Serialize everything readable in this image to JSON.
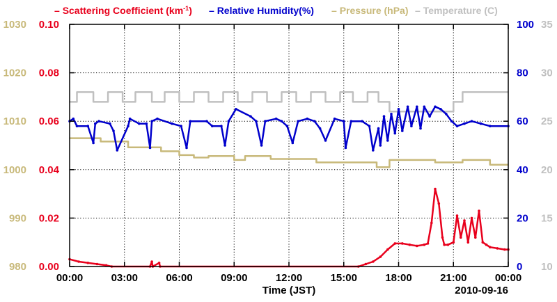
{
  "chart_data": {
    "type": "line",
    "legend": [
      {
        "name": "Scattering Coefficient",
        "unit_prefix": "(km",
        "unit_sup": "-1",
        "unit_suffix": ")",
        "color": "#e8001c",
        "dash": "–"
      },
      {
        "name": "Relative Humidity(%)",
        "color": "#0000cc",
        "dash": "–"
      },
      {
        "name": "Pressure (hPa)",
        "color": "#c8b97a",
        "dash": "–"
      },
      {
        "name": "Temperature (C)",
        "color": "#c0c0c0",
        "dash": "–"
      }
    ],
    "xlabel": "Time (JST)",
    "date_label": "2010-09-16",
    "x_ticks": [
      "00:00",
      "03:00",
      "06:00",
      "09:00",
      "12:00",
      "15:00",
      "18:00",
      "21:00",
      "00:00"
    ],
    "xlim_hours": [
      0,
      24
    ],
    "axes": {
      "scattering": {
        "ticks": [
          "0.00",
          "0.02",
          "0.04",
          "0.06",
          "0.08",
          "0.10"
        ],
        "range": [
          0,
          0.1
        ],
        "color": "#e8001c"
      },
      "humidity": {
        "ticks": [
          "0",
          "20",
          "40",
          "60",
          "80",
          "100"
        ],
        "range": [
          0,
          100
        ],
        "color": "#0000cc"
      },
      "pressure": {
        "ticks": [
          "980",
          "990",
          "1000",
          "1010",
          "1020",
          "1030"
        ],
        "range": [
          980,
          1030
        ],
        "color": "#c8b97a"
      },
      "temperature": {
        "ticks": [
          "10",
          "15",
          "20",
          "25",
          "30",
          "35"
        ],
        "range": [
          10,
          35
        ],
        "color": "#c0c0c0"
      }
    },
    "series": [
      {
        "name": "Temperature",
        "axis": "temperature",
        "color": "#c0c0c0",
        "x": [
          0,
          0.4,
          0.4,
          1.3,
          1.3,
          2.1,
          2.1,
          2.9,
          2.9,
          3.6,
          3.6,
          4.5,
          4.5,
          5.2,
          5.2,
          6.0,
          6.0,
          6.8,
          6.8,
          7.6,
          7.6,
          8.4,
          8.4,
          9.2,
          9.2,
          10.0,
          10.0,
          10.8,
          10.8,
          11.6,
          11.6,
          12.4,
          12.4,
          13.2,
          13.2,
          14.0,
          14.0,
          14.8,
          14.8,
          15.5,
          15.5,
          16.3,
          16.3,
          16.9,
          16.9,
          17.5,
          17.5,
          21.0,
          21.0,
          21.5,
          21.5,
          24
        ],
        "y": [
          27,
          27,
          28,
          28,
          27,
          27,
          28,
          28,
          27,
          27,
          28,
          28,
          27,
          27,
          28,
          28,
          27,
          27,
          28,
          28,
          27,
          27,
          28,
          28,
          27,
          27,
          28,
          28,
          27,
          27,
          28,
          28,
          27,
          27,
          28,
          28,
          27,
          27,
          28,
          28,
          27,
          27,
          28,
          28,
          27,
          27,
          26,
          26,
          27,
          27,
          28,
          28
        ]
      },
      {
        "name": "Pressure",
        "axis": "pressure",
        "color": "#c8b97a",
        "x": [
          0,
          1.7,
          1.7,
          3.2,
          3.2,
          5.0,
          5.0,
          6.0,
          6.0,
          6.8,
          6.8,
          7.6,
          7.6,
          9.0,
          9.0,
          9.6,
          9.6,
          11.0,
          11.0,
          13.5,
          13.5,
          16.8,
          16.8,
          17.5,
          17.5,
          20.0,
          20.0,
          21.5,
          21.5,
          23.0,
          23.0,
          24
        ],
        "y": [
          1006.5,
          1006.5,
          1005.8,
          1005.8,
          1004.6,
          1004.6,
          1003.8,
          1003.8,
          1003.0,
          1003.0,
          1002.5,
          1002.5,
          1002.8,
          1002.8,
          1002.0,
          1002.0,
          1002.8,
          1002.8,
          1002.2,
          1002.2,
          1001.5,
          1001.5,
          1000.5,
          1000.5,
          1002.0,
          1002.0,
          1001.5,
          1001.5,
          1002.0,
          1002.0,
          1001.0,
          1001.0
        ]
      },
      {
        "name": "Relative Humidity",
        "axis": "humidity",
        "color": "#0000cc",
        "x": [
          0,
          0.2,
          0.4,
          1.0,
          1.3,
          1.4,
          1.6,
          2.2,
          2.4,
          2.6,
          3.2,
          3.3,
          3.8,
          4.2,
          4.4,
          4.5,
          4.8,
          5.6,
          6.1,
          6.4,
          6.6,
          7.5,
          7.8,
          8.3,
          8.5,
          8.7,
          9.1,
          9.9,
          10.2,
          10.5,
          10.7,
          11.3,
          11.6,
          11.9,
          12.2,
          12.5,
          13.0,
          13.4,
          13.7,
          14.0,
          14.5,
          15.0,
          15.1,
          15.4,
          16.0,
          16.4,
          16.6,
          16.9,
          17.0,
          17.2,
          17.4,
          17.6,
          17.8,
          18.0,
          18.2,
          18.5,
          18.7,
          19.0,
          19.2,
          19.4,
          19.7,
          20.0,
          20.3,
          20.6,
          20.9,
          21.2,
          21.6,
          22.0,
          22.5,
          23.0,
          24
        ],
        "y": [
          60,
          61,
          58,
          58,
          51,
          59,
          60,
          59,
          56,
          48,
          58,
          61,
          59,
          59,
          49,
          60,
          61,
          59,
          58,
          49,
          60,
          60,
          58,
          58,
          50,
          60,
          65,
          62,
          60,
          50,
          60,
          61,
          60,
          58,
          51,
          60,
          61,
          60,
          57,
          52,
          61,
          60,
          49,
          60,
          60,
          58,
          48,
          57,
          50,
          62,
          52,
          63,
          55,
          65,
          56,
          66,
          58,
          66,
          57,
          66,
          62,
          66,
          65,
          63,
          60,
          58,
          59,
          60,
          59,
          58,
          58
        ]
      },
      {
        "name": "Scattering Coefficient",
        "axis": "scattering",
        "color": "#e8001c",
        "x": [
          0,
          0.5,
          1.0,
          1.5,
          2.0,
          2.3,
          4.4,
          4.5,
          4.55,
          4.9,
          4.95,
          15.8,
          16.2,
          16.6,
          17.0,
          17.4,
          17.8,
          18.2,
          18.6,
          19.0,
          19.4,
          19.6,
          19.8,
          20.0,
          20.2,
          20.4,
          20.5,
          20.7,
          21.0,
          21.2,
          21.4,
          21.6,
          21.8,
          22.0,
          22.2,
          22.4,
          22.6,
          22.8,
          23.0,
          23.4,
          23.8,
          24
        ],
        "y": [
          0.003,
          0.002,
          0.0015,
          0.001,
          0.0005,
          0.0,
          0.0,
          0.002,
          0.0,
          0.0015,
          0.0,
          0.0,
          0.001,
          0.002,
          0.004,
          0.007,
          0.0095,
          0.0095,
          0.009,
          0.0085,
          0.009,
          0.0095,
          0.018,
          0.032,
          0.026,
          0.012,
          0.009,
          0.009,
          0.01,
          0.021,
          0.012,
          0.019,
          0.01,
          0.02,
          0.012,
          0.023,
          0.01,
          0.009,
          0.008,
          0.0075,
          0.007,
          0.007
        ]
      }
    ]
  }
}
